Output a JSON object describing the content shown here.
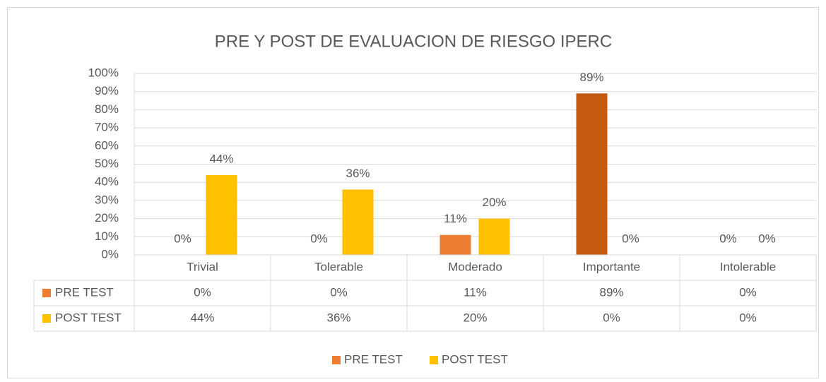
{
  "chart_data": {
    "type": "bar",
    "title": "PRE Y POST DE EVALUACION DE RIESGO IPERC",
    "categories": [
      "Trivial",
      "Tolerable",
      "Moderado",
      "Importante",
      "Intolerable"
    ],
    "series": [
      {
        "name": "PRE TEST",
        "color": "#ed7d31",
        "point_colors": [
          "#ed7d31",
          "#ed7d31",
          "#ed7d31",
          "#c55a11",
          "#ed7d31"
        ],
        "values": [
          0,
          0,
          11,
          89,
          0
        ],
        "value_labels": [
          "0%",
          "0%",
          "11%",
          "89%",
          "0%"
        ]
      },
      {
        "name": "POST TEST",
        "color": "#ffc000",
        "values": [
          44,
          36,
          20,
          0,
          0
        ],
        "value_labels": [
          "44%",
          "36%",
          "20%",
          "0%",
          "0%"
        ]
      }
    ],
    "ylim": [
      0,
      100
    ],
    "yticks": [
      {
        "value": 0,
        "label": "0%"
      },
      {
        "value": 10,
        "label": "10%"
      },
      {
        "value": 20,
        "label": "20%"
      },
      {
        "value": 30,
        "label": "30%"
      },
      {
        "value": 40,
        "label": "40%"
      },
      {
        "value": 50,
        "label": "50%"
      },
      {
        "value": 60,
        "label": "60%"
      },
      {
        "value": 70,
        "label": "70%"
      },
      {
        "value": 80,
        "label": "80%"
      },
      {
        "value": 90,
        "label": "90%"
      },
      {
        "value": 100,
        "label": "100%"
      }
    ],
    "grid": true,
    "data_table": true,
    "legend": "bottom"
  }
}
